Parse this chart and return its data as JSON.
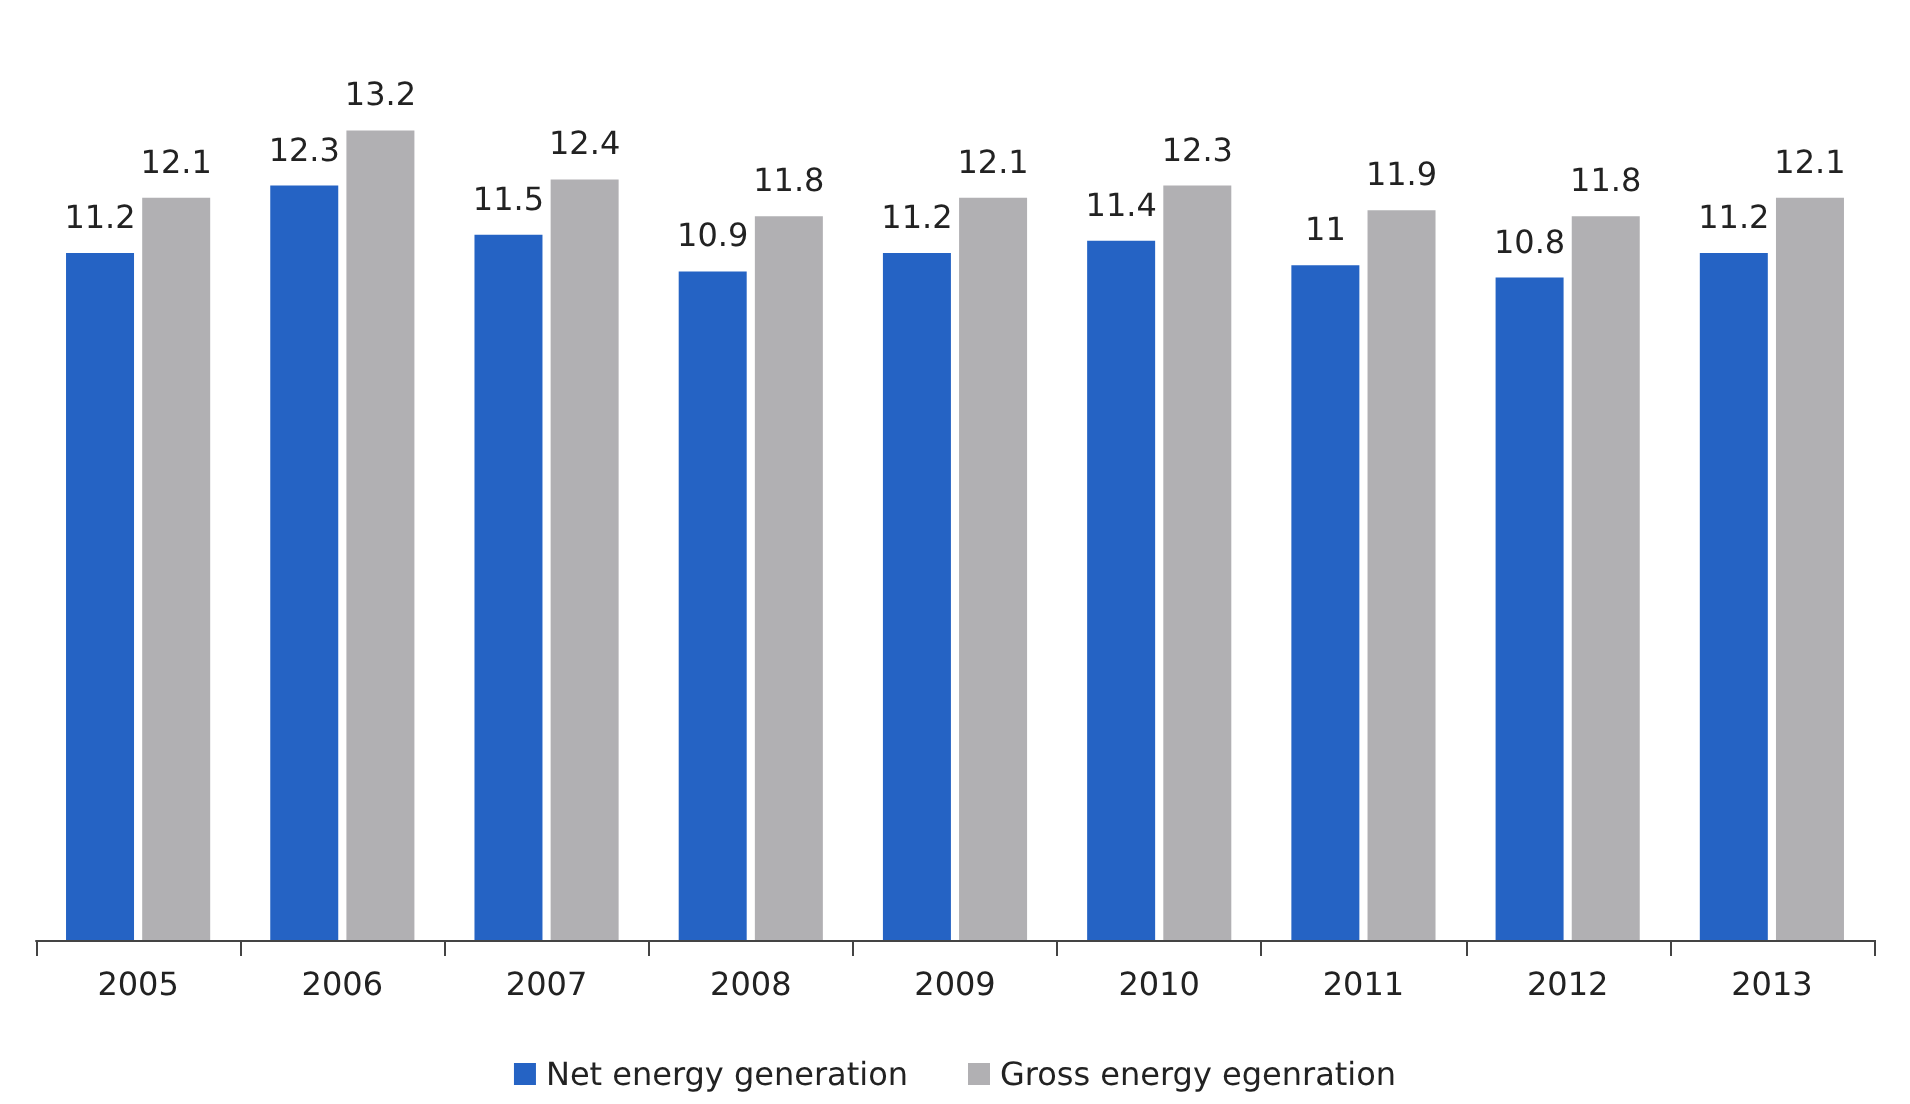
{
  "chart_data": {
    "type": "bar",
    "categories": [
      "2005",
      "2006",
      "2007",
      "2008",
      "2009",
      "2010",
      "2011",
      "2012",
      "2013"
    ],
    "series": [
      {
        "name": "Net energy generation",
        "color": "#2563c4",
        "values": [
          11.2,
          12.3,
          11.5,
          10.9,
          11.2,
          11.4,
          11,
          10.8,
          11.2
        ]
      },
      {
        "name": "Gross energy egenration",
        "color": "#b1b0b3",
        "values": [
          12.1,
          13.2,
          12.4,
          11.8,
          12.1,
          12.3,
          11.9,
          11.8,
          12.1
        ]
      }
    ],
    "data_labels": true,
    "legend": "bottom",
    "grid": false,
    "tick_labels": "x"
  }
}
